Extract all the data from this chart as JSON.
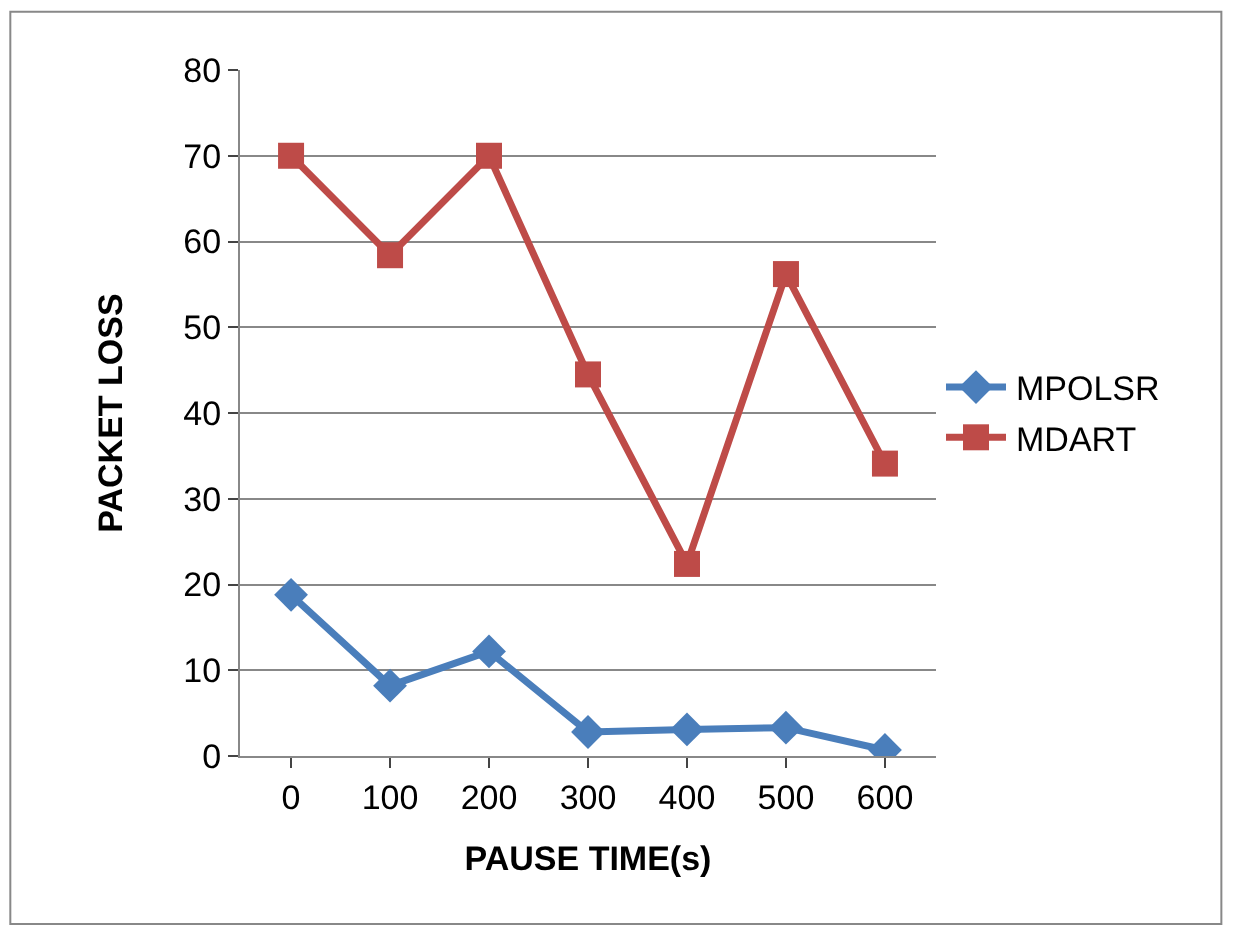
{
  "chart_data": {
    "type": "line",
    "xlabel": "PAUSE TIME(s)",
    "ylabel": "PACKET LOSS",
    "categories": [
      "0",
      "100",
      "200",
      "300",
      "400",
      "500",
      "600"
    ],
    "series": [
      {
        "name": "MPOLSR",
        "color": "#4a7ebb",
        "marker": "diamond",
        "values": [
          18.8,
          8.2,
          12.2,
          2.8,
          3.1,
          3.3,
          0.7
        ]
      },
      {
        "name": "MDART",
        "color": "#be4b48",
        "marker": "square",
        "values": [
          70,
          58.4,
          70,
          44.5,
          22.4,
          56.2,
          34.1
        ]
      }
    ],
    "ylim": [
      0,
      80
    ],
    "yticks": [
      0,
      10,
      20,
      30,
      40,
      50,
      60,
      70,
      80
    ],
    "grid": "y",
    "legend": "right"
  }
}
